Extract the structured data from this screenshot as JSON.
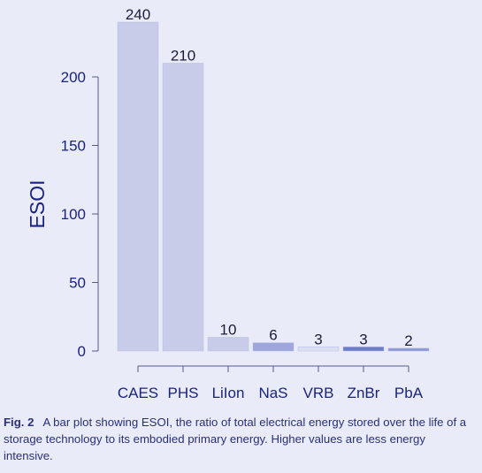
{
  "chart_data": {
    "type": "bar",
    "categories": [
      "CAES",
      "PHS",
      "LiIon",
      "NaS",
      "VRB",
      "ZnBr",
      "PbA"
    ],
    "values": [
      240,
      210,
      10,
      6,
      3,
      3,
      2
    ],
    "data_labels": [
      "240",
      "210",
      "10",
      "6",
      "3",
      "3",
      "2"
    ],
    "ylabel": "ESOI",
    "xlabel": "",
    "ylim": [
      0,
      250
    ],
    "yticks": [
      0,
      50,
      100,
      150,
      200
    ],
    "grid": false,
    "bar_colors": [
      "#c9cce9",
      "#c9cce9",
      "#c9cce9",
      "#9ea6dc",
      "#dcdff2",
      "#6e7ccc",
      "#8f98d8"
    ]
  },
  "caption": {
    "label": "Fig. 2",
    "text": "A bar plot showing ESOI, the ratio of total electrical energy stored over the life of a storage technology to its embodied primary energy. Higher values are less energy intensive."
  },
  "colors": {
    "background": "#e9ecf8",
    "text": "#1a237e",
    "axis": "#555a8a"
  }
}
